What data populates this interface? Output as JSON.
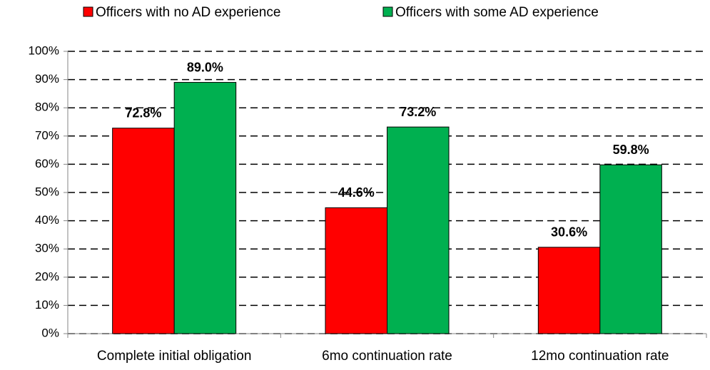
{
  "chart_data": {
    "type": "bar",
    "categories": [
      "Complete initial obligation",
      "6mo continuation rate",
      "12mo continuation rate"
    ],
    "series": [
      {
        "name": "Officers with no AD experience",
        "color": "#ff0000",
        "values": [
          72.8,
          44.6,
          30.6
        ],
        "value_labels": [
          "72.8%",
          "44.6%",
          "30.6%"
        ]
      },
      {
        "name": "Officers with some AD experience",
        "color": "#00b050",
        "values": [
          89.0,
          73.2,
          59.8
        ],
        "value_labels": [
          "89.0%",
          "73.2%",
          "59.8%"
        ]
      }
    ],
    "ylim": [
      0,
      100
    ],
    "yticks": [
      {
        "value": 0,
        "label": "0%"
      },
      {
        "value": 10,
        "label": "10%"
      },
      {
        "value": 20,
        "label": "20%"
      },
      {
        "value": 30,
        "label": "30%"
      },
      {
        "value": 40,
        "label": "40%"
      },
      {
        "value": 50,
        "label": "50%"
      },
      {
        "value": 60,
        "label": "60%"
      },
      {
        "value": 70,
        "label": "70%"
      },
      {
        "value": 80,
        "label": "80%"
      },
      {
        "value": 90,
        "label": "90%"
      },
      {
        "value": 100,
        "label": "100%"
      }
    ],
    "grid": true,
    "legend": "top"
  }
}
